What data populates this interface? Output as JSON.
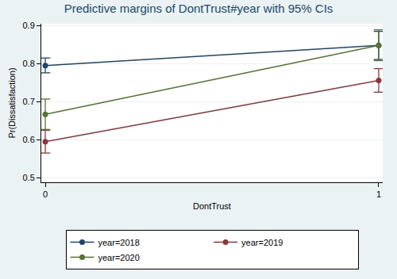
{
  "chart_data": {
    "type": "line",
    "title": "Predictive margins of DontTrust#year with 95% CIs",
    "x_label": "DontTrust",
    "y_label": "Pr(Dissatisfaction)",
    "x": [
      0,
      1
    ],
    "series": [
      {
        "name": "year=2018",
        "color": "#1a476f",
        "values": [
          0.795,
          0.848
        ],
        "ci_low": [
          0.776,
          0.811
        ],
        "ci_high": [
          0.815,
          0.885
        ]
      },
      {
        "name": "year=2019",
        "color": "#90353b",
        "values": [
          0.595,
          0.756
        ],
        "ci_low": [
          0.565,
          0.725
        ],
        "ci_high": [
          0.625,
          0.787
        ]
      },
      {
        "name": "year=2020",
        "color": "#55752f",
        "values": [
          0.667,
          0.848
        ],
        "ci_low": [
          0.627,
          0.808
        ],
        "ci_high": [
          0.707,
          0.889
        ]
      }
    ],
    "xlim": [
      -0.012,
      1.012
    ],
    "ylim": [
      0.488,
      0.905
    ],
    "xticks": [
      0,
      1
    ],
    "yticks": [
      0.5,
      0.6,
      0.7,
      0.8,
      0.9
    ],
    "grid": true,
    "legend": "bottom",
    "marker": "circle",
    "line_style": "solid"
  }
}
